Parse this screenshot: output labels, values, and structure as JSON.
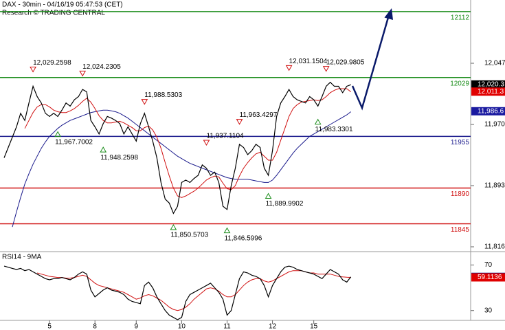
{
  "header": {
    "title": "DAX - 30min - 04/16/19 05:47:53 (CET)",
    "subtitle": "Research © TRADING CENTRAL"
  },
  "chart_data": [
    {
      "type": "line",
      "xlim": [
        -1,
        113
      ],
      "ylim": [
        11810.8,
        12126.6
      ],
      "yticks": [
        {
          "value": 12047,
          "label": "12,047"
        },
        {
          "value": 11970,
          "label": "11,970"
        },
        {
          "value": 11893,
          "label": "11,893"
        },
        {
          "value": 11816,
          "label": "11,816"
        }
      ],
      "series": [
        {
          "color": "#000000",
          "values": [
            11928,
            11941,
            11954,
            11967,
            11984,
            11975,
            11997,
            12018,
            12005,
            11997,
            11984,
            11980,
            11984,
            11980,
            11988,
            11997,
            11993,
            12001,
            12005,
            12014,
            12011,
            11975,
            11967,
            11958,
            11971,
            11980,
            11978,
            11975,
            11971,
            11958,
            11967,
            11958,
            11949,
            11971,
            11984,
            11967,
            11949,
            11928,
            11897,
            11876,
            11871,
            11858,
            11867,
            11897,
            11900,
            11897,
            11902,
            11906,
            11919,
            11915,
            11906,
            11910,
            11897,
            11867,
            11863,
            11893,
            11915,
            11945,
            11941,
            11932,
            11937,
            11945,
            11941,
            11915,
            11906,
            11937,
            11980,
            11997,
            12005,
            12014,
            12005,
            12001,
            11999,
            11997,
            12005,
            12001,
            11993,
            12005,
            12018,
            12023,
            12018,
            12018,
            12010,
            12018,
            12020
          ]
        },
        {
          "color": "#d01010",
          "values": [
            null,
            null,
            null,
            null,
            null,
            11965,
            11975,
            11985,
            11992,
            11995,
            11995,
            11992,
            11988,
            11986,
            11985,
            11985,
            11987,
            11990,
            11994,
            11999,
            12003,
            11998,
            11990,
            11981,
            11975,
            11972,
            11972,
            11973,
            11974,
            11972,
            11969,
            11966,
            11962,
            11962,
            11966,
            11968,
            11963,
            11954,
            11940,
            11922,
            11905,
            11890,
            11880,
            11878,
            11880,
            11883,
            11886,
            11890,
            11895,
            11900,
            11903,
            11905,
            11904,
            11896,
            11889,
            11888,
            11893,
            11905,
            11915,
            11922,
            11928,
            11933,
            11935,
            11930,
            11925,
            11925,
            11935,
            11950,
            11965,
            11980,
            11990,
            11995,
            11998,
            11999,
            12000,
            12001,
            12000,
            12001,
            12005,
            12010,
            12013,
            12015,
            12015,
            12015,
            12011
          ]
        },
        {
          "color": "#1a1a8c",
          "values": [
            null,
            null,
            11841,
            11860,
            11878,
            11895,
            11908,
            11920,
            11930,
            11940,
            11948,
            11955,
            11960,
            11965,
            11969,
            11972,
            11975,
            11977,
            11979,
            11981,
            11983,
            11985,
            11986,
            11987,
            11988,
            11988,
            11987,
            11986,
            11984,
            11981,
            11978,
            11974,
            11970,
            11966,
            11962,
            11958,
            11954,
            11950,
            11946,
            11942,
            11938,
            11934,
            11930,
            11927,
            11924,
            11921,
            11919,
            11917,
            11915,
            11913,
            11911,
            11909,
            11907,
            11905,
            11903,
            11902,
            11901,
            11901,
            11901,
            11901,
            11900,
            11899,
            11898,
            11897,
            11897,
            11900,
            11906,
            11913,
            11920,
            11927,
            11934,
            11940,
            11945,
            11950,
            11955,
            11958,
            11961,
            11964,
            11967,
            11970,
            11973,
            11976,
            11979,
            11982,
            11986
          ]
        }
      ],
      "levels": [
        {
          "value": 12112,
          "color": "#1a8c1a"
        },
        {
          "value": 12029,
          "color": "#1a8c1a"
        },
        {
          "value": 11955,
          "color": "#1a1a8c"
        },
        {
          "value": 11890,
          "color": "#d01010"
        },
        {
          "value": 11845,
          "color": "#d01010"
        }
      ],
      "annotations": [
        {
          "label": "12,029.2598",
          "value": 12029.2598,
          "at": 7,
          "marker": "down"
        },
        {
          "label": "12,024.2305",
          "value": 12024.2305,
          "at": 19,
          "marker": "down"
        },
        {
          "label": "11,967.7002",
          "value": 11967.7002,
          "at": 13,
          "marker": "up"
        },
        {
          "label": "11,948.2598",
          "value": 11948.2598,
          "at": 24,
          "marker": "up"
        },
        {
          "label": "11,988.5303",
          "value": 11988.5303,
          "at": 34,
          "marker": "down"
        },
        {
          "label": "11,850.5703",
          "value": 11850.5703,
          "at": 41,
          "marker": "up"
        },
        {
          "label": "11,937.1104",
          "value": 11937.1104,
          "at": 49,
          "marker": "down"
        },
        {
          "label": "11,963.4297",
          "value": 11963.4297,
          "at": 57,
          "marker": "down"
        },
        {
          "label": "11,846.5996",
          "value": 11846.5996,
          "at": 54,
          "marker": "up"
        },
        {
          "label": "11,889.9902",
          "value": 11889.9902,
          "at": 64,
          "marker": "up"
        },
        {
          "label": "12,031.1504",
          "value": 12031.1504,
          "at": 69,
          "marker": "down"
        },
        {
          "label": "12,029.9805",
          "value": 12029.9805,
          "at": 78,
          "marker": "down"
        },
        {
          "label": "11,983.3301",
          "value": 11983.3301,
          "at": 76,
          "marker": "up"
        }
      ],
      "tags": [
        {
          "label": "12,020.3",
          "value": 12020.3,
          "color": "#000000"
        },
        {
          "label": "12,011.3",
          "value": 12011.3,
          "color": "#e00000"
        },
        {
          "label": "11,986.6",
          "value": 11986.6,
          "color": "#1a1aa0"
        }
      ]
    },
    {
      "type": "line",
      "title": "RSI14 - 9MA",
      "xlim": [
        -1,
        113
      ],
      "ylim": [
        21.4,
        81.1
      ],
      "yticks": [
        70,
        30
      ],
      "xticks": [
        {
          "value": 11,
          "label": "5"
        },
        {
          "value": 22,
          "label": "8"
        },
        {
          "value": 32,
          "label": "9"
        },
        {
          "value": 43,
          "label": "10"
        },
        {
          "value": 54,
          "label": "11"
        },
        {
          "value": 65,
          "label": "12"
        },
        {
          "value": 75,
          "label": "15"
        }
      ],
      "series": [
        {
          "color": "#000000",
          "values": [
            69,
            68,
            67,
            66,
            67,
            65,
            66,
            64,
            62,
            60,
            58,
            57,
            58,
            58,
            59,
            58,
            57,
            59,
            62,
            64,
            62,
            48,
            42,
            45,
            48,
            50,
            48,
            47,
            46,
            44,
            40,
            38,
            37,
            36,
            52,
            55,
            50,
            42,
            36,
            30,
            26,
            24,
            22,
            24,
            38,
            44,
            46,
            48,
            50,
            52,
            54,
            50,
            46,
            40,
            26,
            30,
            44,
            58,
            64,
            63,
            61,
            60,
            58,
            52,
            42,
            52,
            58,
            64,
            68,
            69,
            68,
            66,
            65,
            64,
            63,
            62,
            60,
            58,
            62,
            66,
            64,
            62,
            57,
            55,
            59.5516
          ]
        },
        {
          "color": "#d01010",
          "values": [
            null,
            null,
            null,
            null,
            null,
            null,
            null,
            null,
            63,
            62,
            61,
            60,
            59.5,
            59,
            59,
            58.5,
            58.5,
            59,
            60,
            61,
            60,
            57,
            54,
            52,
            51,
            50,
            49,
            48,
            47,
            46,
            44,
            42,
            40,
            41,
            43,
            44,
            43,
            41,
            39,
            36,
            33,
            31,
            30,
            31,
            33,
            36,
            40,
            43,
            46,
            49,
            50,
            49,
            47,
            44,
            42,
            42,
            44,
            48,
            52,
            55,
            57,
            58,
            58,
            56,
            55,
            56,
            58,
            60,
            62,
            64,
            65,
            65,
            65,
            64,
            63,
            63,
            62,
            62,
            62,
            62,
            61,
            60,
            59.5,
            59.2,
            59.1136
          ]
        }
      ],
      "tags": [
        {
          "label": "59.5516",
          "value": 59.5516,
          "color": "#14147a"
        },
        {
          "label": "59.1136",
          "value": 59.1136,
          "color": "#e00000"
        }
      ]
    }
  ]
}
